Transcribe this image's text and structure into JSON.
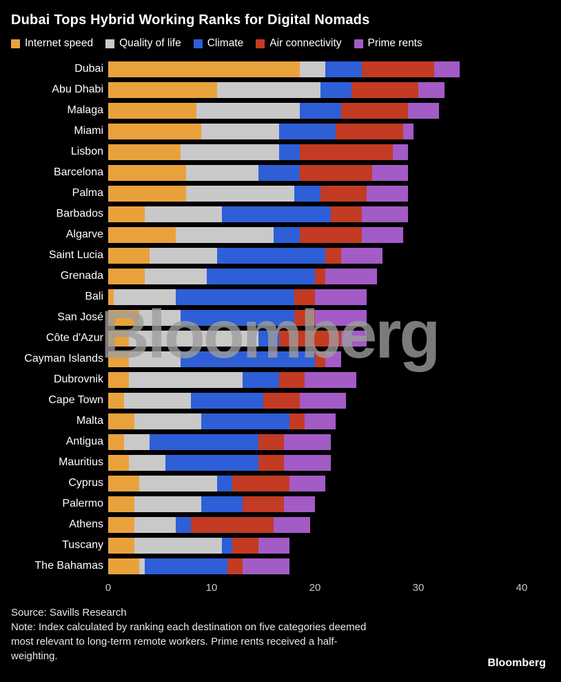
{
  "title": "Dubai Tops Hybrid Working Ranks for Digital Nomads",
  "watermark": "Bloomberg",
  "brand": "Bloomberg",
  "footer": {
    "source": "Source: Savills Research",
    "note_lines": [
      "Note: Index calculated by ranking each destination on five categories deemed",
      "most relevant to long-term remote workers. Prime rents received a half-",
      "weighting."
    ]
  },
  "theme": {
    "background": "#000000",
    "text": "#FFFFFF",
    "axis_text": "#C9C9C9",
    "watermark_gray": "#9E9E9E"
  },
  "chart_data": {
    "type": "bar",
    "orientation": "horizontal",
    "stacked": true,
    "grid": false,
    "legend_position": "top",
    "xlabel": "",
    "ylabel": "",
    "xlim": [
      0,
      40
    ],
    "xticks": [
      0,
      10,
      20,
      30,
      40
    ],
    "title": "Dubai Tops Hybrid Working Ranks for Digital Nomads",
    "categories": [
      "Dubai",
      "Abu Dhabi",
      "Malaga",
      "Miami",
      "Lisbon",
      "Barcelona",
      "Palma",
      "Barbados",
      "Algarve",
      "Saint Lucia",
      "Grenada",
      "Bali",
      "San José",
      "Côte d'Azur",
      "Cayman Islands",
      "Dubrovnik",
      "Cape Town",
      "Malta",
      "Antigua",
      "Mauritius",
      "Cyprus",
      "Palermo",
      "Athens",
      "Tuscany",
      "The Bahamas"
    ],
    "series": [
      {
        "name": "Internet speed",
        "color": "#E9A23B",
        "values": [
          18.5,
          10.5,
          8.5,
          9,
          7,
          7.5,
          7.5,
          3.5,
          6.5,
          4,
          3.5,
          0.5,
          3,
          2,
          2,
          2,
          1.5,
          2.5,
          1.5,
          2,
          3,
          2.5,
          2.5,
          2.5,
          3
        ]
      },
      {
        "name": "Quality of life",
        "color": "#C9C9C9",
        "values": [
          2.5,
          10,
          10,
          7.5,
          9.5,
          7,
          10.5,
          7.5,
          9.5,
          6.5,
          6,
          6,
          4,
          12.5,
          5,
          11,
          6.5,
          6.5,
          2.5,
          3.5,
          7.5,
          6.5,
          4,
          8.5,
          0.5
        ]
      },
      {
        "name": "Climate",
        "color": "#2E5FD7",
        "values": [
          3.5,
          3,
          4,
          5.5,
          2,
          4,
          2.5,
          10.5,
          2.5,
          10.5,
          10.5,
          11.5,
          11,
          2,
          13,
          3.5,
          7,
          8.5,
          10.5,
          9,
          1.5,
          4,
          1.5,
          1,
          8
        ]
      },
      {
        "name": "Air connectivity",
        "color": "#C23B22",
        "values": [
          7,
          6.5,
          6.5,
          6.5,
          9,
          7,
          4.5,
          3,
          6,
          1.5,
          1,
          2,
          2,
          6,
          1,
          2.5,
          3.5,
          1.5,
          2.5,
          2.5,
          5.5,
          4,
          8,
          2.5,
          1.5
        ]
      },
      {
        "name": "Prime rents",
        "color": "#A35BC6",
        "values": [
          2.5,
          2.5,
          3,
          1,
          1.5,
          3.5,
          4,
          4.5,
          4,
          4,
          5,
          5,
          5,
          2.5,
          1.5,
          5,
          4.5,
          3,
          4.5,
          4.5,
          3.5,
          3,
          3.5,
          3,
          4.5
        ]
      }
    ]
  }
}
